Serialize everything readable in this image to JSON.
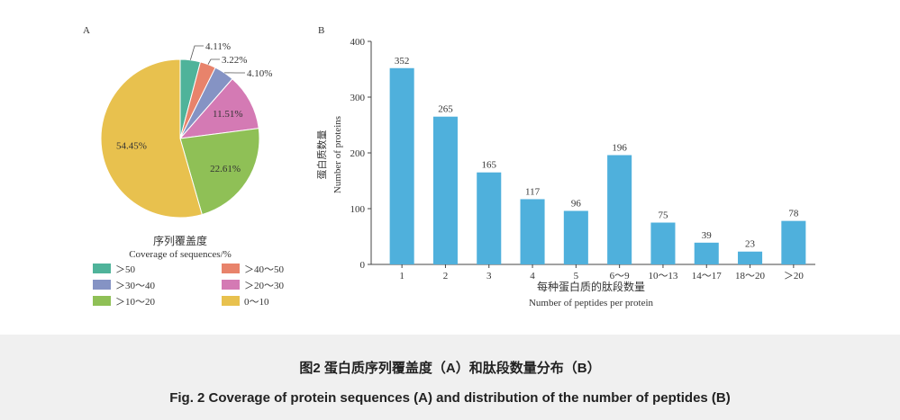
{
  "caption": {
    "zh": "图2   蛋白质序列覆盖度（A）和肽段数量分布（B）",
    "en": "Fig. 2   Coverage of protein sequences (A) and distribution of the number of peptides (B)"
  },
  "chart_data": [
    {
      "type": "pie",
      "panel_label": "A",
      "title": "序列覆盖度",
      "subtitle": "Coverage of sequences/%",
      "legend_position": "bottom",
      "slices": [
        {
          "name": ">50",
          "value": 4.11,
          "label": "4.11%",
          "color": "#4fb39a"
        },
        {
          "name": ">40~50",
          "value": 3.22,
          "label": "3.22%",
          "color": "#e8836b"
        },
        {
          "name": ">30~40",
          "value": 4.1,
          "label": "4.10%",
          "color": "#8593c4"
        },
        {
          "name": ">20~30",
          "value": 11.51,
          "label": "11.51%",
          "color": "#d47ab4"
        },
        {
          "name": ">10~20",
          "value": 22.61,
          "label": "22.61%",
          "color": "#8fc056"
        },
        {
          "name": "0~10",
          "value": 54.45,
          "label": "54.45%",
          "color": "#e8c14e"
        }
      ],
      "legend": [
        {
          "label": ">50",
          "color": "#4fb39a"
        },
        {
          "label": ">40~50",
          "color": "#e8836b"
        },
        {
          "label": ">30~40",
          "color": "#8593c4"
        },
        {
          "label": ">20~30",
          "color": "#d47ab4"
        },
        {
          "label": ">10~20",
          "color": "#8fc056"
        },
        {
          "label": "0~10",
          "color": "#e8c14e"
        }
      ]
    },
    {
      "type": "bar",
      "panel_label": "B",
      "categories": [
        "1",
        "2",
        "3",
        "4",
        "5",
        "6~9",
        "10~13",
        "14~17",
        "18~20",
        ">20"
      ],
      "values": [
        352,
        265,
        165,
        117,
        96,
        196,
        75,
        39,
        23,
        78
      ],
      "bar_color": "#4fb0dc",
      "xlabel": "每种蛋白质的肽段数量",
      "xlabel_en": "Number of peptides per protein",
      "ylabel": "蛋白质数量",
      "ylabel_en": "Number of proteins",
      "ylim": [
        0,
        400
      ],
      "yticks": [
        0,
        100,
        200,
        300,
        400
      ],
      "grid": false
    }
  ]
}
